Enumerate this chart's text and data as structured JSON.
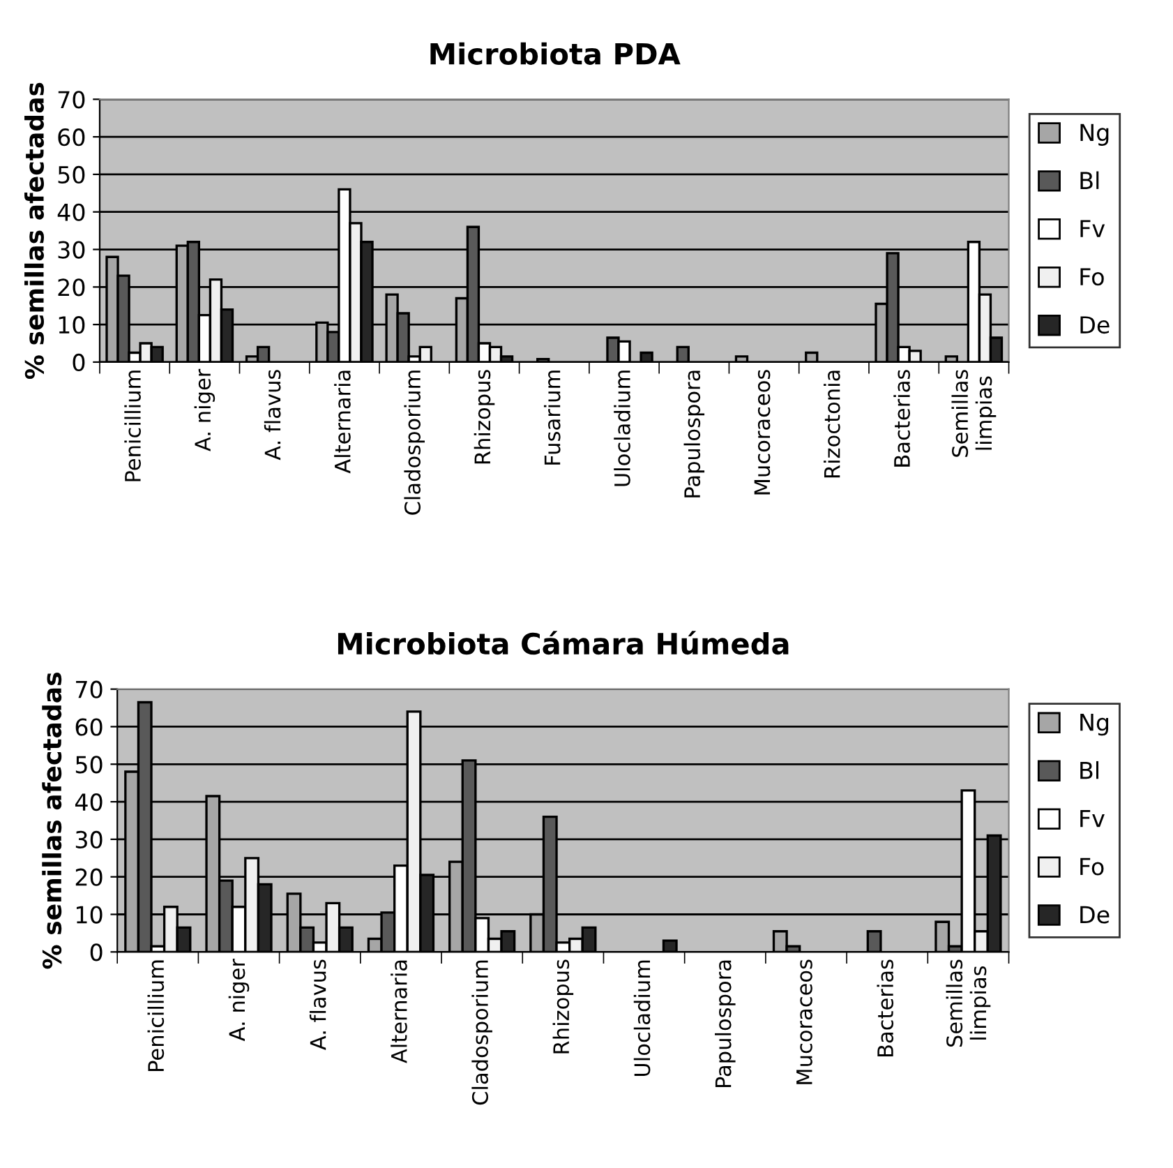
{
  "chart_data": [
    {
      "type": "bar",
      "title": "Microbiota PDA",
      "ylabel": "% semillas afectadas",
      "categories": [
        "Penicillium",
        "A. niger",
        "A. flavus",
        "Alternaria",
        "Cladosporium",
        "Rhizopus",
        "Fusarium",
        "Ulocladium",
        "Papulospora",
        "Mucoraceos",
        "Rizoctonia",
        "Bacterias",
        "Semillas\nlimpias"
      ],
      "series": [
        {
          "name": "Ng",
          "color": "#a6a6a6",
          "values": [
            28,
            31,
            1.5,
            10.5,
            18,
            17,
            null,
            null,
            null,
            1.5,
            2.5,
            15.5,
            1.5
          ]
        },
        {
          "name": "Bl",
          "color": "#595959",
          "values": [
            23,
            32,
            4,
            8,
            13,
            36,
            0.8,
            6.5,
            4,
            null,
            null,
            29,
            null
          ]
        },
        {
          "name": "Fv",
          "color": "#ffffff",
          "values": [
            2.5,
            12.5,
            null,
            46,
            1.5,
            5,
            null,
            5.5,
            null,
            null,
            null,
            4,
            32
          ]
        },
        {
          "name": "Fo",
          "color": "#f0f0f0",
          "values": [
            5,
            22,
            null,
            37,
            4,
            4,
            null,
            null,
            null,
            null,
            null,
            3,
            18
          ]
        },
        {
          "name": "De",
          "color": "#262626",
          "values": [
            4,
            14,
            null,
            32,
            null,
            1.5,
            null,
            2.5,
            null,
            null,
            null,
            null,
            6.5
          ]
        }
      ],
      "ylim": [
        0,
        70
      ],
      "yticks": [
        0,
        10,
        20,
        30,
        40,
        50,
        60,
        70
      ],
      "grid": "y",
      "legend": "right"
    },
    {
      "type": "bar",
      "title": "Microbiota Cámara Húmeda",
      "ylabel": "% semillas afectadas",
      "categories": [
        "Penicillium",
        "A. niger",
        "A. flavus",
        "Alternaria",
        "Cladosporium",
        "Rhizopus",
        "Ulocladium",
        "Papulospora",
        "Mucoraceos",
        "Bacterias",
        "Semillas\nlimpias"
      ],
      "series": [
        {
          "name": "Ng",
          "color": "#a6a6a6",
          "values": [
            48,
            41.5,
            15.5,
            3.5,
            24,
            10,
            null,
            null,
            5.5,
            null,
            8
          ]
        },
        {
          "name": "Bl",
          "color": "#595959",
          "values": [
            66.5,
            19,
            6.5,
            10.5,
            51,
            36,
            null,
            null,
            1.5,
            5.5,
            1.5
          ]
        },
        {
          "name": "Fv",
          "color": "#ffffff",
          "values": [
            1.5,
            12,
            2.5,
            23,
            9,
            2.5,
            null,
            null,
            null,
            null,
            43
          ]
        },
        {
          "name": "Fo",
          "color": "#f0f0f0",
          "values": [
            12,
            25,
            13,
            64,
            3.5,
            3.5,
            null,
            null,
            null,
            null,
            5.5
          ]
        },
        {
          "name": "De",
          "color": "#262626",
          "values": [
            6.5,
            18,
            6.5,
            20.5,
            5.5,
            6.5,
            3,
            null,
            null,
            null,
            31
          ]
        }
      ],
      "ylim": [
        0,
        70
      ],
      "yticks": [
        0,
        10,
        20,
        30,
        40,
        50,
        60,
        70
      ],
      "grid": "y",
      "legend": "right"
    }
  ]
}
